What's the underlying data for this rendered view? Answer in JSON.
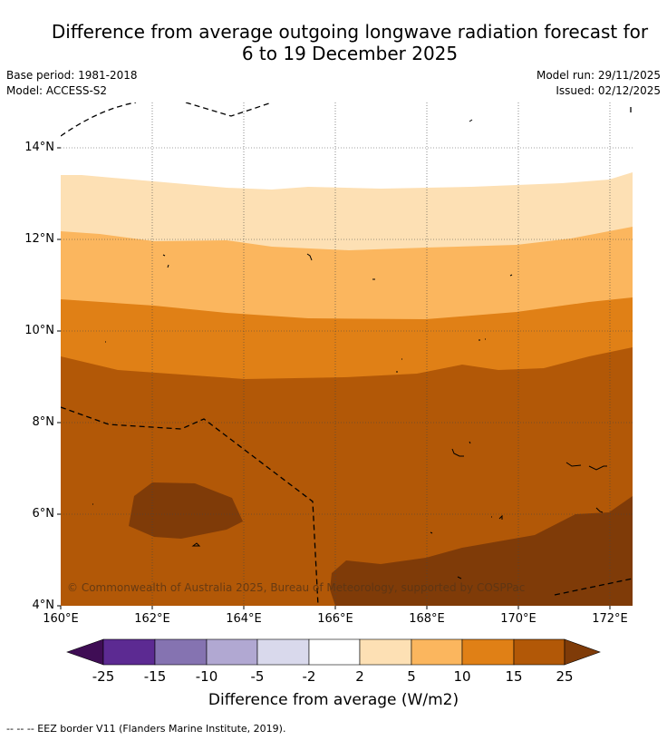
{
  "header": {
    "title_line1": "Difference from average outgoing longwave radiation forecast for",
    "title_line2": "6 to 19 December 2025",
    "base_period": "Base period: 1981-2018",
    "model": "Model: ACCESS-S2",
    "model_run": "Model run: 29/11/2025",
    "issued": "Issued: 02/12/2025"
  },
  "map": {
    "lat_labels": [
      "14°N",
      "12°N",
      "10°N",
      "8°N",
      "6°N",
      "4°N"
    ],
    "lon_labels": [
      "160°E",
      "162°E",
      "164°E",
      "166°E",
      "168°E",
      "170°E",
      "172°E"
    ],
    "copyright": "© Commonwealth of Australia 2025, Bureau of Meteorology, supported by COSPPac"
  },
  "legend": {
    "ticks": [
      "-25",
      "-15",
      "-10",
      "-5",
      "-2",
      "2",
      "5",
      "10",
      "15",
      "25"
    ],
    "title": "Difference from average (W/m2)",
    "colors": {
      "below_min": "#3f0d55",
      "n25_n15": "#5c2a92",
      "n15_n10": "#8573b1",
      "n10_n5": "#b1a8d2",
      "n5_n2": "#d9d9ec",
      "n2_p2": "#ffffff",
      "p2_p5": "#fde0b4",
      "p5_p10": "#fbb65e",
      "p10_p15": "#e08016",
      "p15_p25": "#b25807",
      "above_max": "#7f3b08"
    }
  },
  "footnote": "--  --  -- EEZ border V11 (Flanders Marine Institute, 2019)."
}
